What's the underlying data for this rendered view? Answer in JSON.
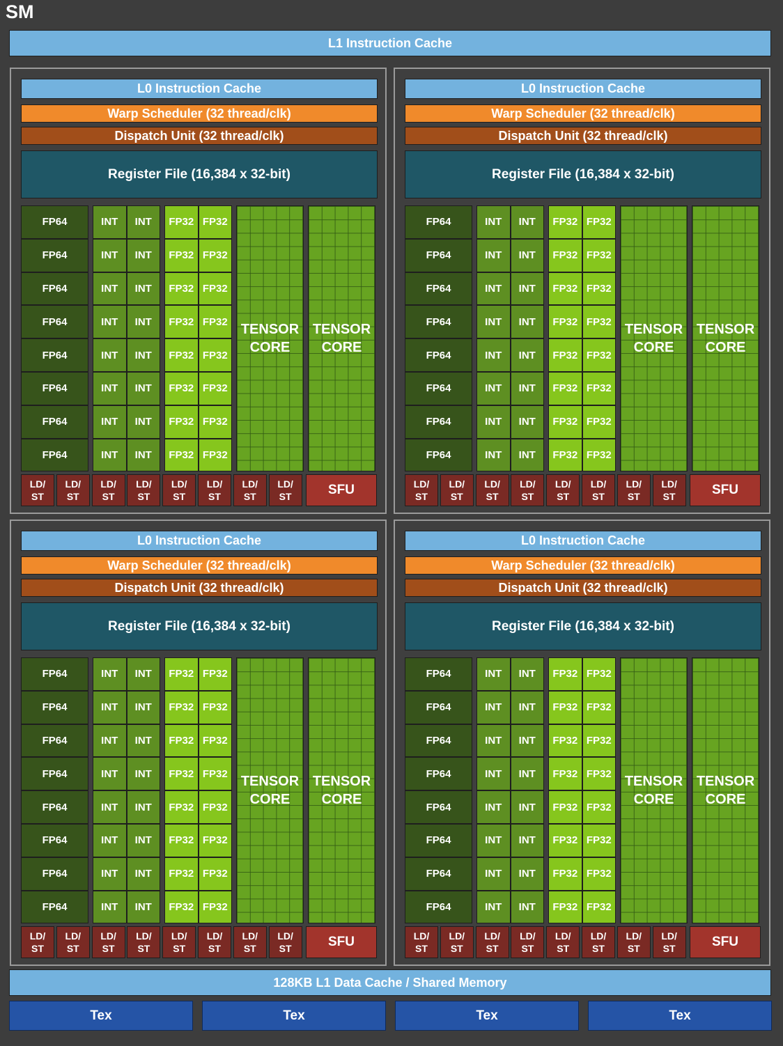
{
  "sm_title": "SM",
  "l1_instruction_cache": "L1 Instruction Cache",
  "l1_data_cache": "128KB L1 Data Cache / Shared Memory",
  "tex_units": [
    "Tex",
    "Tex",
    "Tex",
    "Tex"
  ],
  "partition": {
    "l0_cache": "L0 Instruction Cache",
    "warp_scheduler": "Warp Scheduler (32 thread/clk)",
    "dispatch_unit": "Dispatch Unit (32 thread/clk)",
    "register_file": "Register File (16,384 x 32-bit)",
    "fp64_label": "FP64",
    "int_label": "INT",
    "fp32_label": "FP32",
    "tensor_line1": "TENSOR",
    "tensor_line2": "CORE",
    "ldst_line1": "LD/",
    "ldst_line2": "ST",
    "sfu_label": "SFU",
    "rows": 8,
    "tensor_cores": 2,
    "ldst_units": 8
  },
  "partitions_count": 4,
  "colors": {
    "instruction_cache": "#73b2de",
    "warp_scheduler": "#f08a2b",
    "dispatch_unit": "#a14e1a",
    "register_file": "#1f5766",
    "fp64": "#37541b",
    "int": "#5e8f22",
    "fp32": "#86c61d",
    "tensor_core": "#67a421",
    "ld_st": "#7a2a24",
    "sfu": "#a2342c",
    "tex": "#2554a6"
  }
}
